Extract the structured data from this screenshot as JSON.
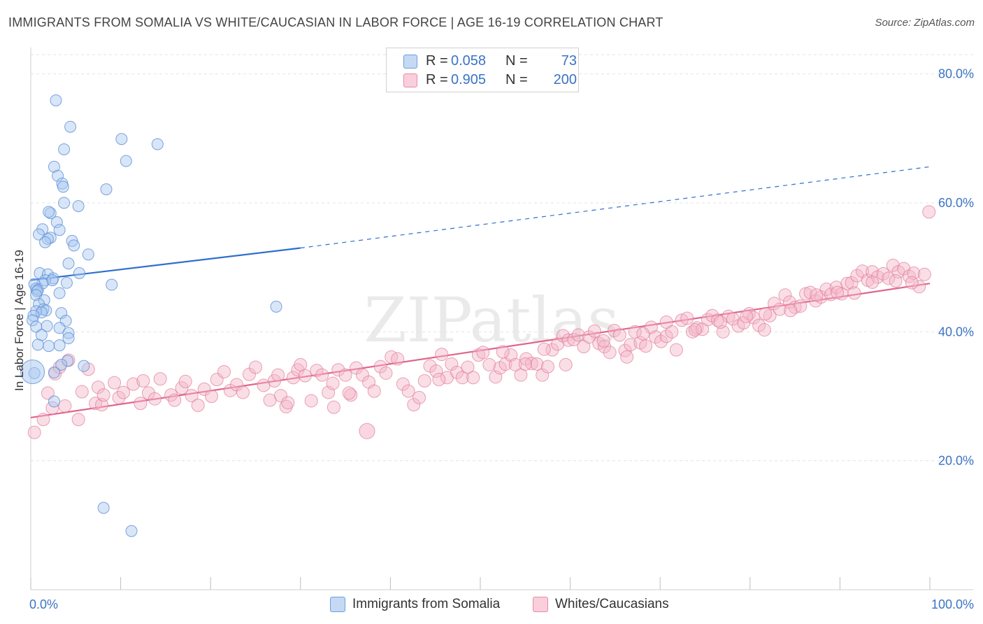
{
  "header": {
    "title": "IMMIGRANTS FROM SOMALIA VS WHITE/CAUCASIAN IN LABOR FORCE | AGE 16-19 CORRELATION CHART",
    "source": "Source: ZipAtlas.com"
  },
  "legend": {
    "rows": [
      {
        "r_label": "R =",
        "r_value": "0.058",
        "n_label": "N =",
        "n_value": "73",
        "color": "#a8c8f0"
      },
      {
        "r_label": "R =",
        "r_value": "0.905",
        "n_label": "N =",
        "n_value": "200",
        "color": "#f5b5c8"
      }
    ]
  },
  "bottom_legend": {
    "items": [
      {
        "label": "Immigrants from Somalia",
        "color": "#a8c8f0"
      },
      {
        "label": "Whites/Caucasians",
        "color": "#f5b5c8"
      }
    ]
  },
  "watermark": "ZIPatlas",
  "colors": {
    "blue_fill": "#a8c8f0",
    "blue_stroke": "#5b8fd6",
    "blue_line": "#2f6fcc",
    "pink_fill": "#f5b5c8",
    "pink_stroke": "#e07a9c",
    "pink_line": "#e0648c",
    "tick_text": "#3b73c4",
    "grid": "#e3e3e3"
  },
  "chart_data": {
    "type": "scatter",
    "title": "IMMIGRANTS FROM SOMALIA VS WHITE/CAUCASIAN IN LABOR FORCE | AGE 16-19 CORRELATION CHART",
    "xlabel": "",
    "ylabel": "In Labor Force | Age 16-19",
    "xlim": [
      0,
      100
    ],
    "ylim": [
      0,
      83
    ],
    "x_tick_labels": [
      "0.0%",
      "100.0%"
    ],
    "y_ticks": [
      20,
      40,
      60,
      80
    ],
    "y_tick_labels": [
      "20.0%",
      "40.0%",
      "60.0%",
      "80.0%"
    ],
    "grid": true,
    "legend_position": "top-center",
    "series": [
      {
        "name": "Immigrants from Somalia",
        "R": 0.058,
        "N": 73,
        "trend": {
          "x0": 0,
          "y0": 48.0,
          "x1": 30,
          "y1": 53.0,
          "dashed_to_x": 100,
          "dashed_to_y": 65.6
        },
        "points": [
          [
            2.8,
            75.9
          ],
          [
            4.4,
            71.8
          ],
          [
            3.7,
            68.3
          ],
          [
            10.1,
            69.9
          ],
          [
            14.1,
            69.1
          ],
          [
            10.6,
            66.5
          ],
          [
            2.6,
            65.6
          ],
          [
            3.0,
            64.2
          ],
          [
            3.5,
            63.0
          ],
          [
            3.6,
            62.5
          ],
          [
            8.4,
            62.1
          ],
          [
            3.7,
            60.0
          ],
          [
            5.3,
            59.5
          ],
          [
            2.2,
            58.4
          ],
          [
            2.0,
            58.6
          ],
          [
            2.9,
            57.0
          ],
          [
            1.3,
            55.9
          ],
          [
            3.2,
            55.8
          ],
          [
            0.9,
            55.1
          ],
          [
            2.2,
            54.6
          ],
          [
            1.9,
            54.4
          ],
          [
            1.6,
            53.9
          ],
          [
            4.6,
            54.1
          ],
          [
            4.8,
            53.4
          ],
          [
            6.4,
            52.0
          ],
          [
            4.2,
            50.6
          ],
          [
            5.4,
            49.1
          ],
          [
            1.0,
            49.1
          ],
          [
            1.9,
            48.9
          ],
          [
            2.5,
            48.3
          ],
          [
            1.6,
            48.0
          ],
          [
            2.4,
            48.0
          ],
          [
            1.3,
            47.5
          ],
          [
            0.4,
            47.4
          ],
          [
            4.0,
            47.6
          ],
          [
            9.0,
            47.3
          ],
          [
            0.6,
            46.7
          ],
          [
            0.8,
            46.5
          ],
          [
            0.7,
            46.3
          ],
          [
            3.2,
            46.0
          ],
          [
            0.6,
            45.7
          ],
          [
            1.5,
            44.9
          ],
          [
            0.9,
            44.3
          ],
          [
            27.3,
            43.9
          ],
          [
            1.4,
            43.5
          ],
          [
            1.7,
            43.3
          ],
          [
            0.6,
            43.2
          ],
          [
            1.2,
            43.0
          ],
          [
            3.4,
            42.9
          ],
          [
            0.3,
            42.5
          ],
          [
            0.2,
            41.8
          ],
          [
            3.9,
            41.7
          ],
          [
            1.8,
            40.9
          ],
          [
            0.6,
            40.8
          ],
          [
            3.2,
            40.6
          ],
          [
            4.2,
            39.8
          ],
          [
            1.2,
            39.5
          ],
          [
            4.2,
            39.0
          ],
          [
            0.8,
            38.0
          ],
          [
            3.2,
            37.9
          ],
          [
            2.0,
            37.8
          ],
          [
            4.1,
            35.5
          ],
          [
            3.4,
            34.9
          ],
          [
            5.9,
            34.7
          ],
          [
            2.6,
            33.7
          ],
          [
            0.4,
            33.6
          ],
          [
            2.6,
            29.2
          ],
          [
            8.1,
            12.7
          ],
          [
            11.2,
            9.1
          ]
        ],
        "large_points": [
          [
            0.2,
            33.8
          ]
        ]
      },
      {
        "name": "Whites/Caucasians",
        "R": 0.905,
        "N": 200,
        "trend": {
          "x0": 0,
          "y0": 26.7,
          "x1": 100,
          "y1": 47.5
        },
        "points": [
          [
            0.4,
            24.4
          ],
          [
            1.4,
            26.4
          ],
          [
            2.4,
            28.2
          ],
          [
            1.9,
            30.5
          ],
          [
            2.7,
            33.5
          ],
          [
            3.2,
            34.5
          ],
          [
            3.8,
            28.5
          ],
          [
            5.3,
            26.4
          ],
          [
            4.2,
            35.6
          ],
          [
            5.7,
            30.7
          ],
          [
            7.2,
            28.9
          ],
          [
            7.5,
            31.4
          ],
          [
            6.4,
            34.2
          ],
          [
            7.9,
            28.7
          ],
          [
            8.1,
            30.2
          ],
          [
            9.3,
            32.1
          ],
          [
            9.8,
            29.8
          ],
          [
            10.3,
            30.6
          ],
          [
            11.4,
            31.9
          ],
          [
            12.2,
            28.9
          ],
          [
            12.5,
            32.4
          ],
          [
            13.1,
            30.5
          ],
          [
            13.8,
            29.6
          ],
          [
            14.4,
            32.7
          ],
          [
            15.6,
            30.2
          ],
          [
            16.0,
            29.4
          ],
          [
            16.8,
            31.3
          ],
          [
            17.2,
            32.3
          ],
          [
            17.9,
            30.1
          ],
          [
            18.6,
            28.6
          ],
          [
            19.3,
            31.1
          ],
          [
            20.1,
            30.0
          ],
          [
            20.7,
            32.6
          ],
          [
            21.5,
            33.8
          ],
          [
            22.2,
            30.9
          ],
          [
            22.9,
            31.8
          ],
          [
            23.6,
            30.6
          ],
          [
            24.3,
            33.4
          ],
          [
            25.0,
            34.5
          ],
          [
            25.9,
            31.7
          ],
          [
            26.6,
            29.4
          ],
          [
            27.1,
            32.4
          ],
          [
            27.8,
            30.1
          ],
          [
            28.4,
            28.4
          ],
          [
            28.6,
            29.0
          ],
          [
            29.2,
            32.9
          ],
          [
            29.7,
            34.1
          ],
          [
            30.5,
            33.2
          ],
          [
            31.2,
            29.3
          ],
          [
            31.8,
            34.0
          ],
          [
            32.4,
            33.3
          ],
          [
            33.1,
            30.6
          ],
          [
            33.6,
            32.0
          ],
          [
            34.2,
            34.1
          ],
          [
            35.0,
            33.3
          ],
          [
            35.6,
            30.2
          ],
          [
            36.2,
            34.4
          ],
          [
            36.9,
            33.3
          ],
          [
            37.6,
            32.2
          ],
          [
            38.2,
            30.8
          ],
          [
            38.9,
            34.6
          ],
          [
            39.5,
            33.6
          ],
          [
            40.1,
            36.1
          ],
          [
            40.8,
            35.8
          ],
          [
            41.4,
            31.9
          ],
          [
            42.0,
            30.8
          ],
          [
            42.6,
            28.7
          ],
          [
            43.2,
            29.8
          ],
          [
            43.8,
            32.4
          ],
          [
            44.4,
            34.7
          ],
          [
            45.1,
            33.9
          ],
          [
            45.7,
            36.5
          ],
          [
            46.3,
            32.9
          ],
          [
            46.8,
            35.0
          ],
          [
            47.4,
            33.7
          ],
          [
            48.0,
            32.9
          ],
          [
            48.6,
            34.5
          ],
          [
            49.2,
            32.9
          ],
          [
            49.8,
            36.4
          ],
          [
            50.3,
            36.8
          ],
          [
            51.0,
            34.9
          ],
          [
            51.7,
            33.0
          ],
          [
            52.2,
            34.4
          ],
          [
            52.8,
            35.0
          ],
          [
            53.4,
            36.4
          ],
          [
            53.9,
            34.9
          ],
          [
            54.5,
            33.3
          ],
          [
            55.1,
            35.8
          ],
          [
            55.7,
            35.1
          ],
          [
            56.3,
            35.0
          ],
          [
            56.9,
            33.3
          ],
          [
            57.5,
            34.6
          ],
          [
            58.0,
            37.2
          ],
          [
            58.6,
            38.1
          ],
          [
            59.2,
            39.4
          ],
          [
            59.8,
            38.7
          ],
          [
            60.4,
            38.8
          ],
          [
            60.9,
            39.5
          ],
          [
            61.5,
            37.7
          ],
          [
            62.1,
            39.2
          ],
          [
            62.7,
            40.1
          ],
          [
            63.2,
            38.2
          ],
          [
            63.8,
            37.7
          ],
          [
            64.4,
            36.8
          ],
          [
            64.9,
            40.2
          ],
          [
            65.5,
            39.5
          ],
          [
            66.1,
            37.1
          ],
          [
            66.7,
            38.0
          ],
          [
            67.2,
            40.0
          ],
          [
            67.8,
            38.3
          ],
          [
            68.4,
            37.8
          ],
          [
            69.0,
            40.7
          ],
          [
            69.5,
            39.2
          ],
          [
            70.1,
            38.5
          ],
          [
            70.7,
            39.3
          ],
          [
            71.3,
            40.0
          ],
          [
            71.8,
            37.2
          ],
          [
            72.4,
            41.8
          ],
          [
            73.0,
            42.1
          ],
          [
            73.6,
            40.0
          ],
          [
            74.1,
            40.6
          ],
          [
            74.7,
            40.4
          ],
          [
            75.3,
            41.9
          ],
          [
            75.8,
            42.5
          ],
          [
            76.4,
            41.8
          ],
          [
            77.0,
            40.0
          ],
          [
            77.6,
            42.4
          ],
          [
            78.1,
            42.0
          ],
          [
            78.7,
            40.9
          ],
          [
            79.3,
            41.4
          ],
          [
            79.9,
            42.8
          ],
          [
            80.4,
            42.2
          ],
          [
            81.0,
            41.0
          ],
          [
            81.6,
            40.3
          ],
          [
            82.2,
            42.5
          ],
          [
            82.7,
            44.4
          ],
          [
            83.3,
            43.5
          ],
          [
            83.9,
            45.7
          ],
          [
            84.4,
            44.6
          ],
          [
            85.0,
            43.8
          ],
          [
            85.6,
            44.0
          ],
          [
            86.2,
            45.9
          ],
          [
            86.7,
            46.1
          ],
          [
            87.3,
            44.8
          ],
          [
            87.9,
            45.4
          ],
          [
            88.5,
            46.6
          ],
          [
            89.0,
            45.8
          ],
          [
            89.6,
            46.9
          ],
          [
            90.2,
            45.9
          ],
          [
            90.8,
            47.5
          ],
          [
            91.3,
            47.6
          ],
          [
            91.9,
            48.7
          ],
          [
            92.5,
            49.4
          ],
          [
            93.1,
            48.0
          ],
          [
            93.6,
            49.3
          ],
          [
            94.2,
            48.5
          ],
          [
            94.8,
            49.0
          ],
          [
            95.4,
            48.3
          ],
          [
            95.9,
            50.3
          ],
          [
            96.5,
            49.3
          ],
          [
            97.1,
            49.8
          ],
          [
            97.7,
            48.6
          ],
          [
            98.2,
            49.1
          ],
          [
            98.8,
            47.0
          ],
          [
            99.4,
            48.9
          ],
          [
            99.9,
            58.6
          ],
          [
            27.5,
            33.3
          ],
          [
            30.0,
            34.9
          ],
          [
            33.7,
            28.3
          ],
          [
            35.4,
            30.5
          ],
          [
            45.4,
            32.6
          ],
          [
            52.5,
            36.9
          ],
          [
            55.0,
            35.0
          ],
          [
            57.1,
            37.3
          ],
          [
            59.5,
            34.9
          ],
          [
            63.7,
            38.6
          ],
          [
            66.3,
            36.1
          ],
          [
            68.1,
            39.7
          ],
          [
            70.7,
            41.5
          ],
          [
            73.9,
            40.3
          ],
          [
            76.7,
            41.5
          ],
          [
            79.6,
            42.4
          ],
          [
            81.7,
            42.8
          ],
          [
            84.5,
            43.3
          ],
          [
            87.4,
            45.7
          ],
          [
            89.7,
            46.1
          ],
          [
            91.6,
            46.0
          ],
          [
            93.6,
            47.7
          ],
          [
            96.2,
            47.9
          ],
          [
            98.0,
            47.6
          ]
        ],
        "large_points": [
          [
            37.4,
            24.6
          ]
        ]
      }
    ]
  }
}
